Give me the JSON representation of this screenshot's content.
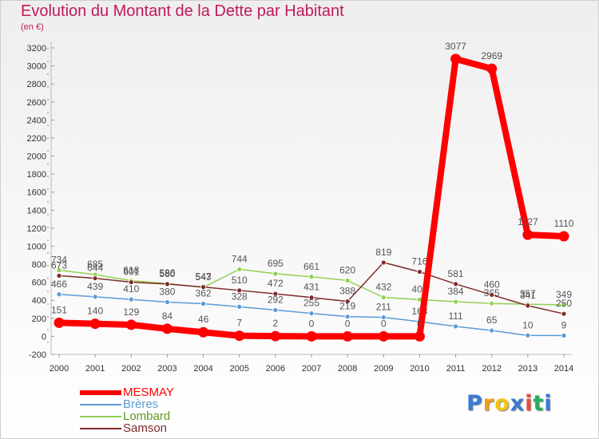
{
  "header": {
    "title": "Evolution du Montant de la Dette par Habitant",
    "subtitle": "(en €)"
  },
  "logo": {
    "letters": [
      "P",
      "r",
      "o",
      "x",
      "i",
      "t",
      "i"
    ],
    "colors": [
      "#3a7bd5",
      "#f39c12",
      "#f1c40f",
      "#3a7bd5",
      "#e74c3c",
      "#27ae60",
      "#3a7bd5"
    ]
  },
  "colors": {
    "title": "#c2185b",
    "MESMAY": "#ff0000",
    "Brères": "#5b9bd5",
    "Lombard": "#92d050",
    "Samson": "#7f2a2a"
  },
  "chart_data": {
    "type": "line",
    "title": "Evolution du Montant de la Dette par Habitant",
    "ylabel": "(en €)",
    "xlabel": "",
    "ylim": [
      -200,
      3200
    ],
    "yticks": [
      -200,
      0,
      200,
      400,
      600,
      800,
      1000,
      1200,
      1400,
      1600,
      1800,
      2000,
      2200,
      2400,
      2600,
      2800,
      3000,
      3200
    ],
    "x": [
      "2000",
      "2001",
      "2002",
      "2003",
      "2004",
      "2005",
      "2006",
      "2007",
      "2008",
      "2009",
      "2010",
      "2011",
      "2012",
      "2013",
      "2014"
    ],
    "series": [
      {
        "name": "Lombard",
        "values": [
          734,
          685,
          618,
          586,
          543,
          744,
          695,
          661,
          620,
          432,
          408,
          384,
          365,
          357,
          349
        ]
      },
      {
        "name": "Samson",
        "values": [
          673,
          644,
          601,
          580,
          547,
          510,
          472,
          431,
          388,
          819,
          716,
          581,
          460,
          341,
          250
        ]
      },
      {
        "name": "Brères",
        "values": [
          466,
          439,
          410,
          380,
          362,
          328,
          292,
          255,
          219,
          211,
          163,
          111,
          65,
          10,
          9
        ]
      },
      {
        "name": "MESMAY",
        "values": [
          151,
          140,
          129,
          84,
          46,
          7,
          2,
          0,
          0,
          0,
          0,
          3077,
          2969,
          1127,
          1110
        ]
      }
    ],
    "legend": [
      "MESMAY",
      "Brères",
      "Lombard",
      "Samson"
    ],
    "legend_position": "bottom-left",
    "grid": false
  }
}
